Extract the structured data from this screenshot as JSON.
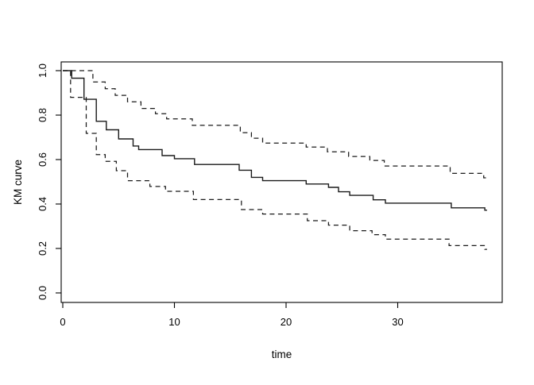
{
  "figure": {
    "background": "#ffffff",
    "line_color": "#000000",
    "ci_line_style": "dashed"
  },
  "chart_data": {
    "type": "line",
    "subtype": "kaplan-meier-step",
    "title": "",
    "xlabel": "time",
    "ylabel": "KM curve",
    "xlim": [
      0,
      39.5
    ],
    "ylim": [
      0.0,
      1.04
    ],
    "x_ticks": [
      0,
      10,
      20,
      30
    ],
    "y_ticks": [
      "0.0",
      "0.2",
      "0.4",
      "0.6",
      "0.8",
      "1.0"
    ],
    "grid": false,
    "legend": null,
    "frame_box": true,
    "series": [
      {
        "name": "km-estimate",
        "style": "solid",
        "t_end": 38.0,
        "points": [
          [
            0.0,
            1.0
          ],
          [
            0.8,
            0.966
          ],
          [
            1.9,
            0.871
          ],
          [
            3.0,
            0.772
          ],
          [
            3.9,
            0.734
          ],
          [
            5.0,
            0.693
          ],
          [
            6.3,
            0.661
          ],
          [
            6.8,
            0.645
          ],
          [
            8.9,
            0.618
          ],
          [
            10.0,
            0.604
          ],
          [
            11.8,
            0.578
          ],
          [
            15.8,
            0.552
          ],
          [
            16.9,
            0.52
          ],
          [
            17.9,
            0.505
          ],
          [
            21.8,
            0.49
          ],
          [
            23.8,
            0.475
          ],
          [
            24.7,
            0.455
          ],
          [
            25.7,
            0.439
          ],
          [
            27.8,
            0.419
          ],
          [
            28.9,
            0.404
          ],
          [
            34.8,
            0.383
          ],
          [
            37.8,
            0.372
          ]
        ]
      },
      {
        "name": "upper-confidence-band",
        "style": "dashed",
        "t_end": 38.1,
        "points": [
          [
            0.0,
            1.0
          ],
          [
            2.7,
            0.949
          ],
          [
            3.8,
            0.919
          ],
          [
            4.7,
            0.889
          ],
          [
            5.8,
            0.86
          ],
          [
            7.0,
            0.83
          ],
          [
            8.3,
            0.806
          ],
          [
            9.3,
            0.783
          ],
          [
            11.6,
            0.754
          ],
          [
            15.9,
            0.721
          ],
          [
            16.9,
            0.696
          ],
          [
            17.9,
            0.674
          ],
          [
            21.8,
            0.656
          ],
          [
            23.7,
            0.635
          ],
          [
            25.6,
            0.614
          ],
          [
            27.5,
            0.596
          ],
          [
            28.8,
            0.571
          ],
          [
            34.7,
            0.538
          ],
          [
            37.7,
            0.518
          ]
        ]
      },
      {
        "name": "lower-confidence-band",
        "style": "dashed",
        "t_end": 38.0,
        "points": [
          [
            0.0,
            1.0
          ],
          [
            0.7,
            0.88
          ],
          [
            2.1,
            0.718
          ],
          [
            3.0,
            0.622
          ],
          [
            3.8,
            0.592
          ],
          [
            4.8,
            0.55
          ],
          [
            5.8,
            0.505
          ],
          [
            7.8,
            0.479
          ],
          [
            9.2,
            0.457
          ],
          [
            11.7,
            0.42
          ],
          [
            16.0,
            0.375
          ],
          [
            17.9,
            0.355
          ],
          [
            21.9,
            0.325
          ],
          [
            23.8,
            0.305
          ],
          [
            25.7,
            0.28
          ],
          [
            27.7,
            0.262
          ],
          [
            28.9,
            0.242
          ],
          [
            34.6,
            0.213
          ],
          [
            37.8,
            0.196
          ]
        ]
      }
    ]
  }
}
